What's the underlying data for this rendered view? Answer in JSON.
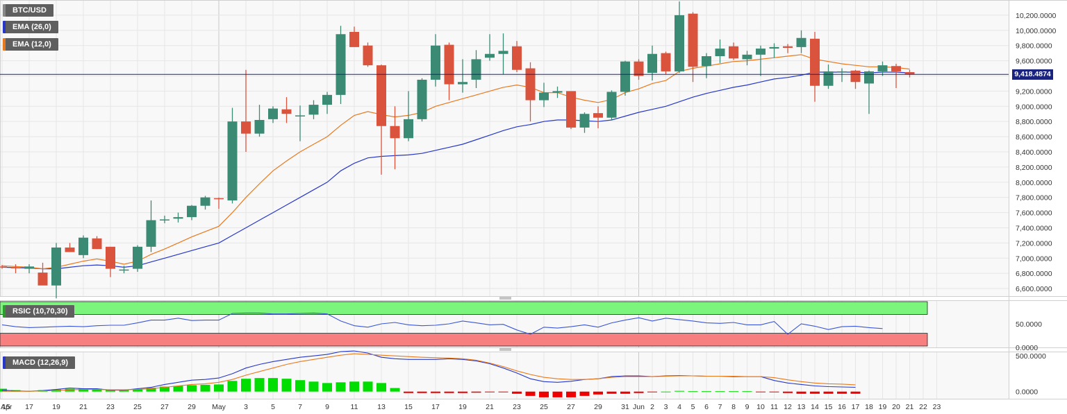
{
  "labels": {
    "symbol": "BTC/USD",
    "ema26": "EMA (26,0)",
    "ema12": "EMA (12,0)",
    "rsi": "RSIC (10,70,30)",
    "macd": "MACD (12,26,9)",
    "last_price": "9,418.4874"
  },
  "colors": {
    "up": "#3b8a74",
    "down": "#d9533d",
    "ema26": "#2637c9",
    "ema12": "#e8791e",
    "rsi_line": "#3a56d8",
    "overbought_zone": "#7cf57c",
    "oversold_zone": "#f77f7f",
    "macd_line": "#2637c9",
    "signal_line": "#e8791e",
    "hist_pos": "#00dd00",
    "hist_neg": "#ee0000",
    "price_line": "#1a237e"
  },
  "chart_data": [
    {
      "type": "candlestick",
      "title": "BTC/USD",
      "ylim": [
        6500,
        10400
      ],
      "y_ticks": [
        "6,600.0000",
        "6,800.0000",
        "7,000.0000",
        "7,200.0000",
        "7,400.0000",
        "7,600.0000",
        "7,800.0000",
        "8,000.0000",
        "8,200.0000",
        "8,400.0000",
        "8,600.0000",
        "8,800.0000",
        "9,000.0000",
        "9,200.0000",
        "9,400.0000",
        "9,600.0000",
        "9,800.0000",
        "10,000.0000",
        "10,200.0000"
      ],
      "y_tick_values": [
        6600,
        6800,
        7000,
        7200,
        7400,
        7600,
        7800,
        8000,
        8200,
        8400,
        8600,
        8800,
        9000,
        9200,
        9400,
        9600,
        9800,
        10000,
        10200
      ],
      "x_ticks": [
        "Apr",
        "15",
        "17",
        "19",
        "21",
        "23",
        "25",
        "27",
        "29",
        "May",
        "3",
        "5",
        "7",
        "9",
        "11",
        "13",
        "15",
        "17",
        "19",
        "21",
        "23",
        "25",
        "27",
        "29",
        "31",
        "Jun",
        "2",
        "3",
        "4",
        "5",
        "6",
        "7",
        "8",
        "9",
        "10",
        "11",
        "12",
        "13",
        "14",
        "15",
        "16",
        "17",
        "18",
        "19",
        "20",
        "21",
        "22",
        "23"
      ],
      "x_tick_days": [
        -1,
        0,
        2,
        4,
        6,
        8,
        10,
        12,
        14,
        16,
        18,
        20,
        22,
        24,
        26,
        28,
        30,
        32,
        34,
        36,
        38,
        40,
        42,
        44,
        46,
        47,
        48,
        49,
        50,
        51,
        52,
        53,
        54,
        55,
        56,
        57,
        58,
        59,
        60,
        61,
        62,
        63,
        64,
        65,
        66,
        67,
        68,
        69
      ],
      "candles_ohlc": [
        [
          6890,
          6910,
          6860,
          6880
        ],
        [
          6880,
          6920,
          6800,
          6870
        ],
        [
          6860,
          6920,
          6800,
          6890
        ],
        [
          6810,
          6940,
          6790,
          6640
        ],
        [
          6640,
          7200,
          6470,
          7140
        ],
        [
          7140,
          7200,
          7080,
          7080
        ],
        [
          7040,
          7300,
          7000,
          7270
        ],
        [
          7260,
          7290,
          7120,
          7120
        ],
        [
          7150,
          7150,
          6750,
          6860
        ],
        [
          6850,
          6900,
          6800,
          6850
        ],
        [
          6860,
          7170,
          6820,
          7150
        ],
        [
          7150,
          7760,
          7080,
          7500
        ],
        [
          7500,
          7560,
          7460,
          7510
        ],
        [
          7520,
          7600,
          7470,
          7540
        ],
        [
          7540,
          7700,
          7500,
          7690
        ],
        [
          7690,
          7820,
          7640,
          7800
        ],
        [
          7790,
          7800,
          7650,
          7780
        ],
        [
          7760,
          8980,
          7720,
          8800
        ],
        [
          8800,
          9480,
          8400,
          8640
        ],
        [
          8640,
          9020,
          8600,
          8820
        ],
        [
          8830,
          9000,
          8780,
          8970
        ],
        [
          8960,
          9120,
          8780,
          8900
        ],
        [
          8880,
          9010,
          8540,
          8880
        ],
        [
          8890,
          9080,
          8830,
          9020
        ],
        [
          9020,
          9190,
          8900,
          9150
        ],
        [
          9150,
          10060,
          9030,
          9950
        ],
        [
          9980,
          10050,
          9800,
          9780
        ],
        [
          9800,
          9840,
          9520,
          9540
        ],
        [
          9540,
          9550,
          8100,
          8740
        ],
        [
          8740,
          9000,
          8170,
          8580
        ],
        [
          8580,
          9200,
          8540,
          8830
        ],
        [
          8830,
          9370,
          8800,
          9350
        ],
        [
          9350,
          9950,
          9260,
          9800
        ],
        [
          9810,
          9840,
          9080,
          9290
        ],
        [
          9290,
          9620,
          9180,
          9320
        ],
        [
          9350,
          9740,
          9240,
          9620
        ],
        [
          9640,
          9950,
          9600,
          9690
        ],
        [
          9690,
          9960,
          9420,
          9730
        ],
        [
          9790,
          9860,
          9450,
          9480
        ],
        [
          9500,
          9580,
          8800,
          9080
        ],
        [
          9080,
          9310,
          8990,
          9180
        ],
        [
          9180,
          9260,
          9110,
          9200
        ],
        [
          9200,
          9190,
          8700,
          8720
        ],
        [
          8720,
          8920,
          8650,
          8900
        ],
        [
          8910,
          9000,
          8710,
          8850
        ],
        [
          8850,
          9210,
          8820,
          9190
        ],
        [
          9190,
          9600,
          9140,
          9590
        ],
        [
          9590,
          9620,
          9350,
          9400
        ],
        [
          9440,
          9800,
          9340,
          9690
        ],
        [
          9700,
          9720,
          9420,
          9460
        ],
        [
          9460,
          10380,
          9440,
          10200
        ],
        [
          10220,
          10240,
          9320,
          9520
        ],
        [
          9530,
          9700,
          9370,
          9660
        ],
        [
          9660,
          9880,
          9570,
          9760
        ],
        [
          9790,
          9840,
          9610,
          9630
        ],
        [
          9620,
          9730,
          9540,
          9680
        ],
        [
          9680,
          9800,
          9400,
          9760
        ],
        [
          9760,
          9830,
          9640,
          9780
        ],
        [
          9790,
          9820,
          9700,
          9770
        ],
        [
          9780,
          10000,
          9700,
          9900
        ],
        [
          9890,
          9980,
          9060,
          9270
        ],
        [
          9270,
          9550,
          9230,
          9460
        ],
        [
          9460,
          9500,
          9320,
          9460
        ],
        [
          9470,
          9480,
          9230,
          9320
        ],
        [
          9300,
          9470,
          8900,
          9460
        ],
        [
          9460,
          9590,
          9400,
          9540
        ],
        [
          9530,
          9560,
          9240,
          9460
        ],
        [
          9450,
          9480,
          9380,
          9420
        ]
      ],
      "ema26_values": [
        6880,
        6875,
        6870,
        6860,
        6860,
        6880,
        6900,
        6910,
        6900,
        6880,
        6900,
        6950,
        7000,
        7050,
        7100,
        7150,
        7200,
        7300,
        7400,
        7500,
        7600,
        7700,
        7800,
        7900,
        8000,
        8150,
        8250,
        8320,
        8340,
        8350,
        8360,
        8380,
        8420,
        8460,
        8500,
        8560,
        8620,
        8680,
        8730,
        8760,
        8800,
        8820,
        8820,
        8810,
        8800,
        8820,
        8870,
        8920,
        8960,
        9000,
        9060,
        9120,
        9170,
        9210,
        9250,
        9280,
        9320,
        9360,
        9380,
        9410,
        9450,
        9450,
        9450,
        9450,
        9440,
        9450,
        9450,
        9440
      ],
      "ema12_values": [
        6900,
        6890,
        6880,
        6860,
        6880,
        6920,
        6960,
        6990,
        6960,
        6920,
        6960,
        7050,
        7120,
        7200,
        7280,
        7350,
        7420,
        7600,
        7800,
        7980,
        8150,
        8280,
        8400,
        8500,
        8600,
        8750,
        8880,
        8930,
        8890,
        8860,
        8880,
        8920,
        9000,
        9050,
        9100,
        9150,
        9200,
        9250,
        9280,
        9250,
        9180,
        9180,
        9120,
        9080,
        9050,
        9090,
        9180,
        9230,
        9300,
        9340,
        9460,
        9500,
        9530,
        9560,
        9590,
        9600,
        9620,
        9640,
        9660,
        9680,
        9620,
        9590,
        9560,
        9540,
        9520,
        9520,
        9510,
        9490
      ]
    },
    {
      "type": "line",
      "title": "RSIC (10,70,30)",
      "ylim": [
        0,
        100
      ],
      "y_ticks": [
        "0.0000",
        "50.0000"
      ],
      "y_tick_values": [
        0,
        50
      ],
      "overbought": 70,
      "oversold": 30,
      "values": [
        48,
        44,
        42,
        43,
        44,
        45,
        44,
        46,
        47,
        47,
        52,
        58,
        58,
        62,
        57,
        58,
        58,
        72,
        73,
        73,
        71,
        71,
        72,
        73,
        71,
        56,
        46,
        43,
        50,
        53,
        48,
        46,
        47,
        50,
        56,
        52,
        48,
        49,
        37,
        28,
        43,
        41,
        44,
        48,
        43,
        52,
        58,
        63,
        56,
        62,
        59,
        56,
        52,
        51,
        53,
        48,
        48,
        55,
        28,
        50,
        45,
        38,
        44,
        45,
        42,
        40
      ]
    },
    {
      "type": "line",
      "title": "MACD (12,26,9)",
      "ylim": [
        -100,
        560
      ],
      "y_ticks": [
        "0.0000",
        "500.0000"
      ],
      "y_tick_values": [
        0,
        500
      ],
      "macd_values": [
        20,
        10,
        5,
        15,
        30,
        50,
        40,
        40,
        20,
        20,
        40,
        60,
        100,
        130,
        160,
        170,
        190,
        250,
        330,
        380,
        420,
        450,
        480,
        500,
        520,
        560,
        570,
        540,
        480,
        460,
        450,
        450,
        450,
        460,
        450,
        430,
        390,
        330,
        260,
        180,
        140,
        130,
        145,
        170,
        180,
        210,
        220,
        220,
        210,
        220,
        225,
        220,
        215,
        215,
        210,
        210,
        210,
        155,
        120,
        100,
        80,
        70,
        65,
        60
      ],
      "signal_values": [
        5,
        5,
        5,
        10,
        15,
        25,
        30,
        30,
        25,
        25,
        30,
        40,
        60,
        80,
        100,
        110,
        130,
        170,
        230,
        280,
        330,
        380,
        420,
        450,
        480,
        510,
        530,
        520,
        510,
        500,
        490,
        480,
        475,
        470,
        460,
        440,
        400,
        350,
        290,
        240,
        200,
        180,
        170,
        170,
        180,
        200,
        210,
        210,
        210,
        215,
        220,
        220,
        215,
        215,
        215,
        210,
        210,
        195,
        165,
        140,
        120,
        110,
        105,
        95
      ],
      "histogram_values": [
        40,
        20,
        10,
        20,
        30,
        40,
        45,
        40,
        30,
        25,
        35,
        55,
        70,
        80,
        90,
        95,
        100,
        150,
        180,
        190,
        190,
        180,
        160,
        140,
        120,
        130,
        140,
        140,
        120,
        50,
        -20,
        -20,
        -20,
        -20,
        -20,
        -15,
        -10,
        -10,
        -30,
        -60,
        -80,
        -80,
        -80,
        -60,
        -40,
        -30,
        -30,
        -20,
        -10,
        0,
        10,
        5,
        5,
        5,
        5,
        5,
        -5,
        -10,
        -20,
        -30,
        -30,
        -30,
        -30,
        -30
      ]
    }
  ]
}
